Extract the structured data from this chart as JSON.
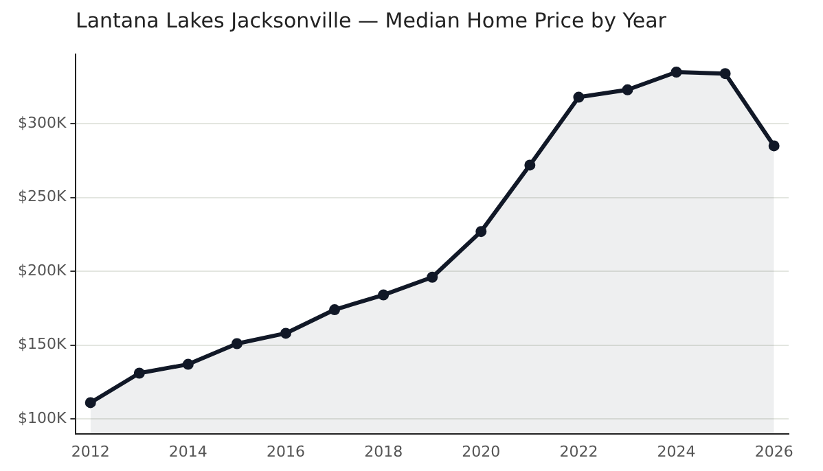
{
  "chart_data": {
    "type": "area",
    "title": "Lantana Lakes Jacksonville — Median Home Price by Year",
    "x": [
      2012,
      2013,
      2014,
      2015,
      2016,
      2017,
      2018,
      2019,
      2020,
      2021,
      2022,
      2023,
      2024,
      2025,
      2026
    ],
    "series": [
      {
        "color": "#111827",
        "values": [
          111,
          131,
          137,
          151,
          158,
          174,
          184,
          196,
          227,
          272,
          318,
          323,
          335,
          334,
          285
        ]
      }
    ],
    "xlim": [
      2011.7,
      2026.3
    ],
    "xticks": [
      2012,
      2014,
      2016,
      2018,
      2020,
      2022,
      2024,
      2026
    ],
    "ylim": [
      90,
      347
    ],
    "yticks": [
      {
        "value": 100,
        "label": "$100K"
      },
      {
        "value": 150,
        "label": "$150K"
      },
      {
        "value": 200,
        "label": "$200K"
      },
      {
        "value": 250,
        "label": "$250K"
      },
      {
        "value": 300,
        "label": "$300K"
      }
    ],
    "grid": "y",
    "legend": false,
    "marker": "circle",
    "line_style": "solid"
  }
}
